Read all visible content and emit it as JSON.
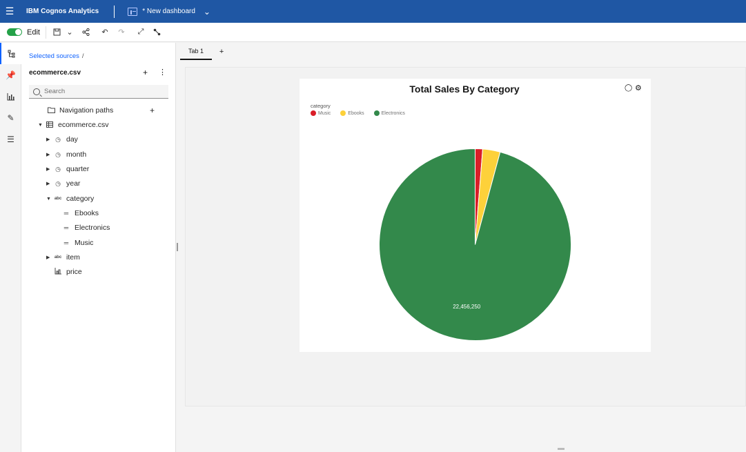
{
  "topbar": {
    "brand": "IBM Cognos Analytics",
    "dashboard_title": "* New dashboard",
    "color": "#1f57a4"
  },
  "toolbar": {
    "edit_label": "Edit",
    "edit_on": true
  },
  "rail": {
    "items": [
      "data-sources-icon",
      "pin-icon",
      "visualizations-icon",
      "assistant-icon",
      "sources-icon"
    ]
  },
  "panel": {
    "breadcrumb": "Selected sources",
    "breadcrumb_sep": "/",
    "source_name": "ecommerce.csv",
    "search_placeholder": "Search",
    "tree": {
      "nav_paths": "Navigation paths",
      "table": "ecommerce.csv",
      "day": "day",
      "month": "month",
      "quarter": "quarter",
      "year": "year",
      "category": "category",
      "ebooks": "Ebooks",
      "electronics": "Electronics",
      "music": "Music",
      "item": "item",
      "price": "price"
    }
  },
  "canvas": {
    "tab": "Tab 1",
    "tab_add": "+"
  },
  "chart_data": {
    "type": "pie",
    "title": "Total Sales By Category",
    "legend_title": "category",
    "legend_position": "top-left",
    "categories": [
      "Music",
      "Ebooks",
      "Electronics"
    ],
    "values": [
      295000,
      690000,
      22456250
    ],
    "colors": [
      "#da1e28",
      "#fdd13a",
      "#33894b"
    ],
    "data_labels": [
      "",
      "",
      "22,456,250"
    ]
  }
}
